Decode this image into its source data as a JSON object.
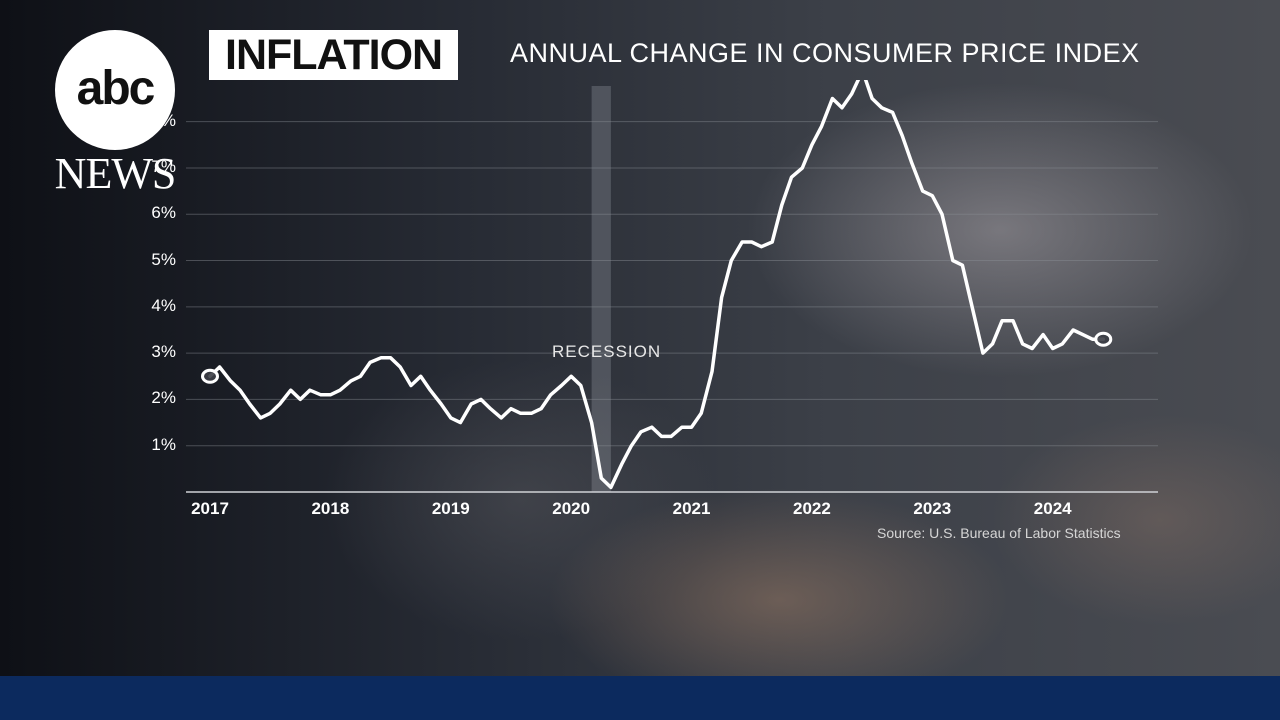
{
  "brand": {
    "logo_text": "abc",
    "logo_subtext": "NEWS"
  },
  "header": {
    "title": "INFLATION",
    "subtitle": "ANNUAL CHANGE IN CONSUMER PRICE INDEX"
  },
  "annotations": {
    "recession": "RECESSION",
    "source": "Source: U.S. Bureau of Labor Statistics"
  },
  "colors": {
    "line": "#ffffff",
    "grid": "#8a8d94",
    "bottom_bar": "#0c2a5e"
  },
  "chart_data": {
    "type": "line",
    "title": "ANNUAL CHANGE IN CONSUMER PRICE INDEX",
    "xlabel": "",
    "ylabel": "",
    "x_ticks": [
      "2017",
      "2018",
      "2019",
      "2020",
      "2021",
      "2022",
      "2023",
      "2024"
    ],
    "y_ticks": [
      {
        "value": 1,
        "label": "1%"
      },
      {
        "value": 2,
        "label": "2%"
      },
      {
        "value": 3,
        "label": "3%"
      },
      {
        "value": 4,
        "label": "4%"
      },
      {
        "value": 5,
        "label": "5%"
      },
      {
        "value": 6,
        "label": "6%"
      },
      {
        "value": 7,
        "label": "7%"
      },
      {
        "value": 8,
        "label": "8%"
      }
    ],
    "xlim": [
      2017,
      2024.75
    ],
    "ylim": [
      0,
      8.9
    ],
    "grid": true,
    "recession_band": {
      "start": 2020.17,
      "end": 2020.33
    },
    "series": [
      {
        "points": [
          [
            2017.0,
            2.5
          ],
          [
            2017.08,
            2.7
          ],
          [
            2017.17,
            2.4
          ],
          [
            2017.25,
            2.2
          ],
          [
            2017.33,
            1.9
          ],
          [
            2017.42,
            1.6
          ],
          [
            2017.5,
            1.7
          ],
          [
            2017.58,
            1.9
          ],
          [
            2017.67,
            2.2
          ],
          [
            2017.75,
            2.0
          ],
          [
            2017.83,
            2.2
          ],
          [
            2017.92,
            2.1
          ],
          [
            2018.0,
            2.1
          ],
          [
            2018.08,
            2.2
          ],
          [
            2018.17,
            2.4
          ],
          [
            2018.25,
            2.5
          ],
          [
            2018.33,
            2.8
          ],
          [
            2018.42,
            2.9
          ],
          [
            2018.5,
            2.9
          ],
          [
            2018.58,
            2.7
          ],
          [
            2018.67,
            2.3
          ],
          [
            2018.75,
            2.5
          ],
          [
            2018.83,
            2.2
          ],
          [
            2018.92,
            1.9
          ],
          [
            2019.0,
            1.6
          ],
          [
            2019.08,
            1.5
          ],
          [
            2019.17,
            1.9
          ],
          [
            2019.25,
            2.0
          ],
          [
            2019.33,
            1.8
          ],
          [
            2019.42,
            1.6
          ],
          [
            2019.5,
            1.8
          ],
          [
            2019.58,
            1.7
          ],
          [
            2019.67,
            1.7
          ],
          [
            2019.75,
            1.8
          ],
          [
            2019.83,
            2.1
          ],
          [
            2019.92,
            2.3
          ],
          [
            2020.0,
            2.5
          ],
          [
            2020.08,
            2.3
          ],
          [
            2020.17,
            1.5
          ],
          [
            2020.25,
            0.3
          ],
          [
            2020.33,
            0.1
          ],
          [
            2020.42,
            0.6
          ],
          [
            2020.5,
            1.0
          ],
          [
            2020.58,
            1.3
          ],
          [
            2020.67,
            1.4
          ],
          [
            2020.75,
            1.2
          ],
          [
            2020.83,
            1.2
          ],
          [
            2020.92,
            1.4
          ],
          [
            2021.0,
            1.4
          ],
          [
            2021.08,
            1.7
          ],
          [
            2021.17,
            2.6
          ],
          [
            2021.25,
            4.2
          ],
          [
            2021.33,
            5.0
          ],
          [
            2021.42,
            5.4
          ],
          [
            2021.5,
            5.4
          ],
          [
            2021.58,
            5.3
          ],
          [
            2021.67,
            5.4
          ],
          [
            2021.75,
            6.2
          ],
          [
            2021.83,
            6.8
          ],
          [
            2021.92,
            7.0
          ],
          [
            2022.0,
            7.5
          ],
          [
            2022.08,
            7.9
          ],
          [
            2022.17,
            8.5
          ],
          [
            2022.25,
            8.3
          ],
          [
            2022.33,
            8.6
          ],
          [
            2022.42,
            9.1
          ],
          [
            2022.5,
            8.5
          ],
          [
            2022.58,
            8.3
          ],
          [
            2022.67,
            8.2
          ],
          [
            2022.75,
            7.7
          ],
          [
            2022.83,
            7.1
          ],
          [
            2022.92,
            6.5
          ],
          [
            2023.0,
            6.4
          ],
          [
            2023.08,
            6.0
          ],
          [
            2023.17,
            5.0
          ],
          [
            2023.25,
            4.9
          ],
          [
            2023.33,
            4.0
          ],
          [
            2023.42,
            3.0
          ],
          [
            2023.5,
            3.2
          ],
          [
            2023.58,
            3.7
          ],
          [
            2023.67,
            3.7
          ],
          [
            2023.75,
            3.2
          ],
          [
            2023.83,
            3.1
          ],
          [
            2023.92,
            3.4
          ],
          [
            2024.0,
            3.1
          ],
          [
            2024.08,
            3.2
          ],
          [
            2024.17,
            3.5
          ],
          [
            2024.25,
            3.4
          ],
          [
            2024.33,
            3.3
          ],
          [
            2024.42,
            3.3
          ]
        ]
      }
    ]
  }
}
